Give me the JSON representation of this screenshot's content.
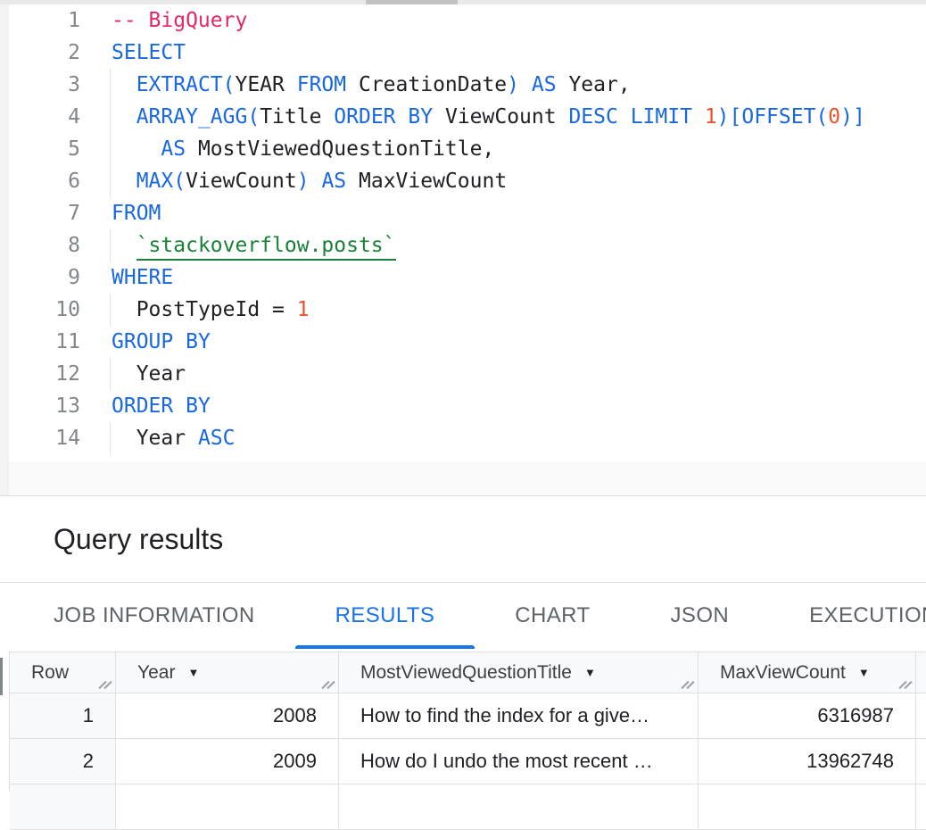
{
  "colors": {
    "keyword": "#1a68e0",
    "comment": "#e52764",
    "number": "#ea5230",
    "table_ref": "#188038",
    "identifier": "#202124",
    "tab_active": "#1a73e8",
    "tab_inactive": "#5f6368",
    "header_bg": "#f8f9fa",
    "border": "#e0e0e0"
  },
  "editor": {
    "lines": [
      {
        "number": "1",
        "guide": false,
        "tokens": [
          [
            "comment",
            "-- BigQuery"
          ]
        ]
      },
      {
        "number": "2",
        "guide": false,
        "tokens": [
          [
            "kw",
            "SELECT"
          ]
        ]
      },
      {
        "number": "3",
        "guide": true,
        "tokens": [
          [
            "plain",
            "  "
          ],
          [
            "kw",
            "EXTRACT("
          ],
          [
            "id",
            "YEAR"
          ],
          [
            "plain",
            " "
          ],
          [
            "kw",
            "FROM"
          ],
          [
            "plain",
            " "
          ],
          [
            "id",
            "CreationDate"
          ],
          [
            "kw",
            ")"
          ],
          [
            "plain",
            " "
          ],
          [
            "kw",
            "AS"
          ],
          [
            "plain",
            " "
          ],
          [
            "id",
            "Year,"
          ]
        ]
      },
      {
        "number": "4",
        "guide": true,
        "tokens": [
          [
            "plain",
            "  "
          ],
          [
            "kw",
            "ARRAY_AGG("
          ],
          [
            "id",
            "Title"
          ],
          [
            "plain",
            " "
          ],
          [
            "kw",
            "ORDER"
          ],
          [
            "plain",
            " "
          ],
          [
            "kw",
            "BY"
          ],
          [
            "plain",
            " "
          ],
          [
            "id",
            "ViewCount"
          ],
          [
            "plain",
            " "
          ],
          [
            "kw",
            "DESC"
          ],
          [
            "plain",
            " "
          ],
          [
            "kw",
            "LIMIT"
          ],
          [
            "plain",
            " "
          ],
          [
            "num",
            "1"
          ],
          [
            "kw",
            ")[OFFSET("
          ],
          [
            "num",
            "0"
          ],
          [
            "kw",
            ")]"
          ]
        ]
      },
      {
        "number": "5",
        "guide": true,
        "tokens": [
          [
            "plain",
            "    "
          ],
          [
            "kw",
            "AS"
          ],
          [
            "plain",
            " "
          ],
          [
            "id",
            "MostViewedQuestionTitle,"
          ]
        ]
      },
      {
        "number": "6",
        "guide": true,
        "tokens": [
          [
            "plain",
            "  "
          ],
          [
            "kw",
            "MAX("
          ],
          [
            "id",
            "ViewCount"
          ],
          [
            "kw",
            ")"
          ],
          [
            "plain",
            " "
          ],
          [
            "kw",
            "AS"
          ],
          [
            "plain",
            " "
          ],
          [
            "id",
            "MaxViewCount"
          ]
        ]
      },
      {
        "number": "7",
        "guide": false,
        "tokens": [
          [
            "kw",
            "FROM"
          ]
        ]
      },
      {
        "number": "8",
        "guide": true,
        "tokens": [
          [
            "plain",
            "  "
          ],
          [
            "table",
            "`stackoverflow.posts`"
          ]
        ]
      },
      {
        "number": "9",
        "guide": false,
        "tokens": [
          [
            "kw",
            "WHERE"
          ]
        ]
      },
      {
        "number": "10",
        "guide": true,
        "tokens": [
          [
            "plain",
            "  "
          ],
          [
            "id",
            "PostTypeId"
          ],
          [
            "plain",
            " "
          ],
          [
            "op",
            "="
          ],
          [
            "plain",
            " "
          ],
          [
            "num",
            "1"
          ]
        ]
      },
      {
        "number": "11",
        "guide": false,
        "tokens": [
          [
            "kw",
            "GROUP"
          ],
          [
            "plain",
            " "
          ],
          [
            "kw",
            "BY"
          ]
        ]
      },
      {
        "number": "12",
        "guide": true,
        "tokens": [
          [
            "plain",
            "  "
          ],
          [
            "id",
            "Year"
          ]
        ]
      },
      {
        "number": "13",
        "guide": false,
        "tokens": [
          [
            "kw",
            "ORDER"
          ],
          [
            "plain",
            " "
          ],
          [
            "kw",
            "BY"
          ]
        ]
      },
      {
        "number": "14",
        "guide": true,
        "tokens": [
          [
            "plain",
            "  "
          ],
          [
            "id",
            "Year"
          ],
          [
            "plain",
            " "
          ],
          [
            "kw",
            "ASC"
          ]
        ]
      }
    ]
  },
  "results_panel": {
    "title": "Query results",
    "tabs": [
      {
        "label": "JOB INFORMATION",
        "active": false
      },
      {
        "label": "RESULTS",
        "active": true
      },
      {
        "label": "CHART",
        "active": false
      },
      {
        "label": "JSON",
        "active": false
      },
      {
        "label": "EXECUTION DETAILS",
        "active": false
      }
    ],
    "table": {
      "columns": [
        {
          "label": "Row",
          "sortable": false,
          "align": "left"
        },
        {
          "label": "Year",
          "sortable": true,
          "align": "left"
        },
        {
          "label": "MostViewedQuestionTitle",
          "sortable": true,
          "align": "left"
        },
        {
          "label": "MaxViewCount",
          "sortable": true,
          "align": "left"
        },
        {
          "label": "",
          "sortable": false,
          "align": "left"
        }
      ],
      "rows": [
        {
          "row": "1",
          "year": "2008",
          "title": "How to find the index for a give…",
          "max_view_count": "6316987"
        },
        {
          "row": "2",
          "year": "2009",
          "title": "How do I undo the most recent …",
          "max_view_count": "13962748"
        }
      ],
      "sort_arrow_glyph": "▼"
    }
  }
}
